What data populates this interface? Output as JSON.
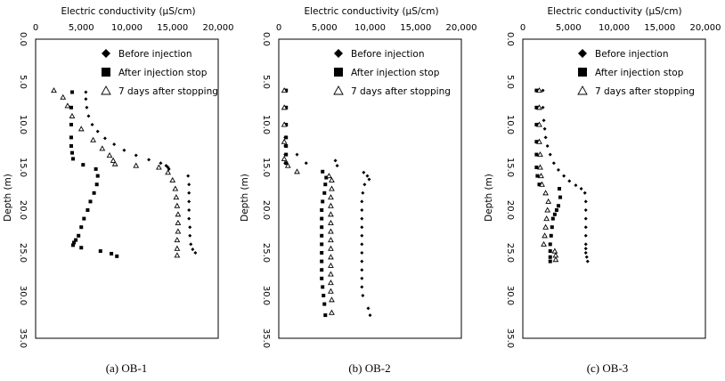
{
  "chart_data": [
    {
      "type": "scatter",
      "caption": "(a) OB-1",
      "xlabel": "Electric conductivity (μS/cm)",
      "ylabel": "Depth (m)",
      "xlim": [
        0,
        20000
      ],
      "ylim": [
        0,
        35
      ],
      "y_reversed": true,
      "x_ticks": [
        "0",
        "5,000",
        "10,000",
        "15,000",
        "20,000"
      ],
      "y_ticks": [
        "0.0",
        "5.0",
        "10.0",
        "15.0",
        "20.0",
        "25.0",
        "30.0",
        "35.0"
      ],
      "legend": [
        "Before injection",
        "After injection stop",
        "7 days after stopping"
      ],
      "series": [
        {
          "name": "Before injection",
          "marker": "diamond",
          "x": [
            5500,
            5500,
            5600,
            5800,
            6200,
            6800,
            7600,
            8600,
            9700,
            11000,
            12400,
            13700,
            14300,
            14500,
            14600,
            16700,
            16800,
            16800,
            16800,
            16800,
            16800,
            16900,
            16900,
            17000,
            17200,
            17500
          ],
          "y": [
            6.2,
            7.0,
            8.0,
            9.0,
            10.0,
            10.8,
            11.6,
            12.3,
            13.0,
            13.6,
            14.1,
            14.5,
            14.8,
            15.0,
            15.2,
            16.0,
            17.0,
            18.0,
            19.0,
            20.0,
            21.0,
            22.0,
            23.0,
            24.0,
            24.6,
            25.0
          ]
        },
        {
          "name": "After injection stop",
          "marker": "square",
          "x": [
            4000,
            3900,
            3900,
            3900,
            3900,
            4000,
            4100,
            5200,
            6600,
            6800,
            6700,
            6400,
            6000,
            5700,
            5300,
            5000,
            4700,
            4400,
            4200,
            4100,
            5000,
            7100,
            8300,
            8900
          ],
          "y": [
            6.2,
            8.0,
            10.0,
            11.5,
            12.5,
            13.3,
            14.0,
            14.7,
            15.2,
            16.0,
            17.0,
            18.0,
            19.0,
            20.0,
            21.0,
            22.0,
            23.0,
            23.5,
            23.8,
            24.1,
            24.4,
            24.8,
            25.1,
            25.4
          ]
        },
        {
          "name": "7 days after stopping",
          "marker": "triangle",
          "x": [
            2000,
            3000,
            3500,
            4000,
            5000,
            6300,
            7300,
            8100,
            8500,
            8700,
            11000,
            13500,
            14500,
            15000,
            15300,
            15400,
            15500,
            15600,
            15600,
            15600,
            15500,
            15500,
            15500
          ],
          "y": [
            6.0,
            6.8,
            7.8,
            9.0,
            10.5,
            11.8,
            12.8,
            13.6,
            14.2,
            14.6,
            14.8,
            15.0,
            15.6,
            16.5,
            17.5,
            18.5,
            19.5,
            20.5,
            21.5,
            22.5,
            23.5,
            24.5,
            25.3
          ]
        }
      ]
    },
    {
      "type": "scatter",
      "caption": "(b) OB-2",
      "xlabel": "Electric conductivity (μS/cm)",
      "ylabel": "Depth (m)",
      "xlim": [
        0,
        20000
      ],
      "ylim": [
        0,
        35
      ],
      "y_reversed": true,
      "x_ticks": [
        "0",
        "5,000",
        "10,000",
        "15,000",
        "20,000"
      ],
      "y_ticks": [
        "0.0",
        "5.0",
        "10.0",
        "15.0",
        "20.0",
        "25.0",
        "30.0",
        "35.0"
      ],
      "legend": [
        "Before injection",
        "After injection stop",
        "7 days after stopping"
      ],
      "series": [
        {
          "name": "Before injection",
          "marker": "diamond",
          "x": [
            700,
            700,
            700,
            700,
            700,
            700,
            700,
            2000,
            3000,
            6200,
            6400,
            9300,
            9700,
            9900,
            9400,
            9200,
            9100,
            9100,
            9100,
            9100,
            9100,
            9100,
            9100,
            9100,
            9100,
            9100,
            9100,
            9200,
            9800,
            10000
          ],
          "y": [
            6.0,
            8.0,
            10.0,
            11.5,
            12.5,
            13.5,
            14.5,
            13.5,
            14.5,
            14.2,
            14.8,
            15.6,
            16.0,
            16.4,
            17.0,
            18.0,
            19.0,
            20.0,
            21.0,
            22.0,
            23.0,
            24.0,
            25.0,
            26.0,
            27.0,
            28.0,
            29.0,
            30.0,
            31.5,
            32.3
          ]
        },
        {
          "name": "After injection stop",
          "marker": "square",
          "x": [
            800,
            800,
            800,
            800,
            800,
            800,
            800,
            4800,
            5200,
            5100,
            5000,
            4800,
            4700,
            4700,
            4700,
            4700,
            4700,
            4700,
            4700,
            4700,
            4700,
            4800,
            4900,
            5000,
            5100
          ],
          "y": [
            6.0,
            8.0,
            10.0,
            11.5,
            12.5,
            13.5,
            14.5,
            15.5,
            16.2,
            17.0,
            18.0,
            19.0,
            20.0,
            21.0,
            22.0,
            23.0,
            24.0,
            25.0,
            26.0,
            27.0,
            28.0,
            29.0,
            30.0,
            31.0,
            32.3
          ]
        },
        {
          "name": "7 days after stopping",
          "marker": "triangle",
          "x": [
            600,
            600,
            600,
            600,
            600,
            1000,
            2000,
            5500,
            5800,
            5800,
            5700,
            5700,
            5700,
            5700,
            5700,
            5700,
            5700,
            5700,
            5700,
            5700,
            5700,
            5700,
            5800,
            5800
          ],
          "y": [
            6.0,
            8.0,
            10.0,
            12.0,
            14.0,
            14.8,
            15.5,
            16.0,
            16.5,
            17.5,
            18.5,
            19.5,
            20.5,
            21.5,
            22.5,
            23.5,
            24.5,
            25.5,
            26.5,
            27.5,
            28.5,
            29.5,
            30.5,
            32.0
          ]
        }
      ]
    },
    {
      "type": "scatter",
      "caption": "(c) OB-3",
      "xlabel": "Electric conductivity (μS/cm)",
      "ylabel": "Depth (m)",
      "xlim": [
        0,
        20000
      ],
      "ylim": [
        0,
        35
      ],
      "y_reversed": true,
      "x_ticks": [
        "0",
        "5,000",
        "10,000",
        "15,000",
        "20,000"
      ],
      "y_ticks": [
        "0.0",
        "5.0",
        "10.0",
        "15.0",
        "20.0",
        "25.0",
        "30.0",
        "35.0"
      ],
      "legend": [
        "Before injection",
        "After injection stop",
        "7 days after stopping"
      ],
      "series": [
        {
          "name": "Before injection",
          "marker": "diamond",
          "x": [
            2200,
            2200,
            2300,
            2400,
            2500,
            2700,
            3000,
            3400,
            3900,
            4500,
            5100,
            5800,
            6400,
            6800,
            6900,
            6900,
            6900,
            6900,
            6900,
            6900,
            6900,
            6900,
            7000,
            7100
          ],
          "y": [
            6.0,
            8.0,
            9.5,
            10.5,
            11.5,
            12.5,
            13.5,
            14.5,
            15.3,
            16.0,
            16.6,
            17.1,
            17.5,
            18.0,
            19.0,
            20.0,
            21.0,
            22.0,
            23.0,
            24.0,
            24.5,
            25.0,
            25.5,
            26.0
          ]
        },
        {
          "name": "After injection stop",
          "marker": "square",
          "x": [
            1500,
            1500,
            1500,
            1500,
            1500,
            1500,
            1600,
            1800,
            4000,
            4100,
            3900,
            3700,
            3500,
            3300,
            3200,
            3100,
            3000,
            3000,
            3000,
            3000
          ],
          "y": [
            6.0,
            8.0,
            10.0,
            12.0,
            13.5,
            15.0,
            16.0,
            17.0,
            17.5,
            18.5,
            19.5,
            20.0,
            20.5,
            21.0,
            22.0,
            23.0,
            24.0,
            24.8,
            25.5,
            26.0
          ]
        },
        {
          "name": "7 days after stopping",
          "marker": "triangle",
          "x": [
            1800,
            1800,
            1800,
            1800,
            1900,
            1900,
            2000,
            2100,
            2500,
            2800,
            2700,
            2600,
            2500,
            2400,
            2300,
            3500,
            3600,
            3600
          ],
          "y": [
            6.0,
            8.0,
            10.0,
            12.0,
            13.5,
            15.0,
            16.0,
            17.0,
            18.0,
            19.0,
            20.0,
            21.0,
            22.0,
            23.0,
            24.0,
            24.8,
            25.3,
            25.8
          ]
        }
      ]
    }
  ]
}
